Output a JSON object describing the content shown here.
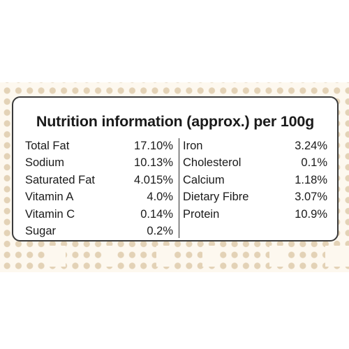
{
  "label": {
    "title": "Nutrition information (approx.) per 100g",
    "left_rows": [
      {
        "name": "Total Fat",
        "value": "17.10%"
      },
      {
        "name": "Sodium",
        "value": "10.13%"
      },
      {
        "name": "Saturated Fat",
        "value": "4.015%"
      },
      {
        "name": "Vitamin A",
        "value": "4.0%"
      },
      {
        "name": "Vitamin C",
        "value": "0.14%"
      },
      {
        "name": "Sugar",
        "value": "0.2%"
      }
    ],
    "right_rows": [
      {
        "name": "Iron",
        "value": "3.24%"
      },
      {
        "name": "Cholesterol",
        "value": "0.1%"
      },
      {
        "name": "Calcium",
        "value": "1.18%"
      },
      {
        "name": "Dietary Fibre",
        "value": "3.07%"
      },
      {
        "name": "Protein",
        "value": "10.9%"
      }
    ]
  },
  "colors": {
    "background_tint": "#fdf8ef",
    "dot_color": "#e3d2b6",
    "border": "#3a3a3a",
    "text": "#1a1a1a"
  }
}
